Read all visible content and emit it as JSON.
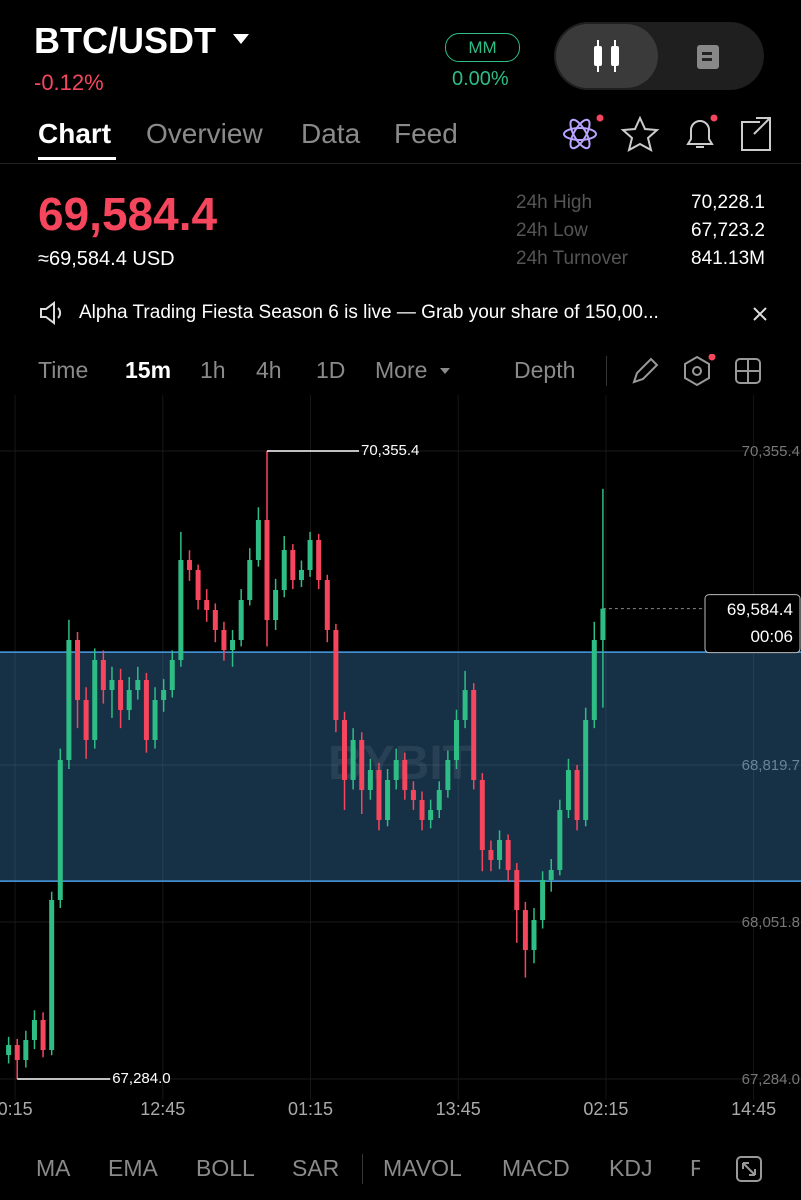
{
  "header": {
    "pair": "BTC/USDT",
    "change": "-0.12%",
    "mm": "MM",
    "mm_value": "0.00%"
  },
  "tabs": [
    "Chart",
    "Overview",
    "Data",
    "Feed"
  ],
  "price": "69,584.4",
  "price_usd": "≈69,584.4 USD",
  "stats": [
    {
      "label": "24h High",
      "value": "70,228.1"
    },
    {
      "label": "24h Low",
      "value": "67,723.2"
    },
    {
      "label": "24h Turnover",
      "value": "841.13M"
    }
  ],
  "announcement": "Alpha Trading Fiesta Season 6 is live — Grab your share of 150,00...",
  "intervals": [
    "Time",
    "15m",
    "1h",
    "4h",
    "1D",
    "More"
  ],
  "depth": "Depth",
  "indicators": [
    "MA",
    "EMA",
    "BOLL",
    "SAR",
    "MAVOL",
    "MACD",
    "KDJ",
    "F"
  ],
  "chart_data": {
    "type": "candlestick",
    "watermark": "BYBIT",
    "up_color": "#2ebd85",
    "down_color": "#f6465d",
    "zone_color": "#4a9ee8",
    "ylim": [
      67205.7,
      70531.5
    ],
    "xlim": [
      0,
      93
    ],
    "yticks": [
      {
        "value": 70355.4,
        "label": "70,355.4"
      },
      {
        "value": 68819.7,
        "label": "68,819.7"
      },
      {
        "value": 68051.8,
        "label": "68,051.8"
      },
      {
        "value": 67284.0,
        "label": "67,284.0"
      }
    ],
    "xticks": [
      {
        "value": 1.75,
        "label": "0:15"
      },
      {
        "value": 18.9,
        "label": "12:45"
      },
      {
        "value": 36.05,
        "label": "01:15"
      },
      {
        "value": 53.2,
        "label": "13:45"
      },
      {
        "value": 70.35,
        "label": "02:15"
      },
      {
        "value": 87.5,
        "label": "14:45"
      }
    ],
    "zone": [
      68252,
      69372
    ],
    "max_label": "70,355.4",
    "min_label": "67,284.0",
    "last_price": 69584.4,
    "last_price_label": "69,584.4",
    "countdown": "00:06",
    "candles": [
      [
        67401.2,
        67490,
        67360,
        67450.1
      ],
      [
        67450.1,
        67480,
        67284.0,
        67376.8
      ],
      [
        67376.8,
        67520,
        67340,
        67474.6
      ],
      [
        67474.6,
        67620,
        67430,
        67572.4
      ],
      [
        67572.4,
        67610,
        67390,
        67425.7
      ],
      [
        67425.7,
        68200,
        67400,
        68159.3
      ],
      [
        68159.3,
        68900,
        68120,
        68844.1
      ],
      [
        68844.1,
        69530,
        68800,
        69431.0
      ],
      [
        69431.0,
        69470,
        69000,
        69137.5
      ],
      [
        69137.5,
        69200,
        68850,
        68941.9
      ],
      [
        68941.9,
        69390,
        68900,
        69333.2
      ],
      [
        69333.2,
        69380,
        69120,
        69186.4
      ],
      [
        69186.4,
        69300,
        69050,
        69235.4
      ],
      [
        69235.4,
        69290,
        69000,
        69088.6
      ],
      [
        69088.6,
        69250,
        69040,
        69186.4
      ],
      [
        69186.4,
        69300,
        69140,
        69235.4
      ],
      [
        69235.4,
        69270,
        68880,
        68941.9
      ],
      [
        68941.9,
        69200,
        68900,
        69137.5
      ],
      [
        69137.5,
        69240,
        69080,
        69186.4
      ],
      [
        69186.4,
        69380,
        69150,
        69333.2
      ],
      [
        69333.2,
        69960,
        69300,
        69822.3
      ],
      [
        69822.3,
        69870,
        69720,
        69773.4
      ],
      [
        69773.4,
        69800,
        69580,
        69626.6
      ],
      [
        69626.6,
        69680,
        69520,
        69577.7
      ],
      [
        69577.7,
        69610,
        69420,
        69479.9
      ],
      [
        69479.9,
        69520,
        69330,
        69382.1
      ],
      [
        69382.1,
        69480,
        69300,
        69431.0
      ],
      [
        69431.0,
        69680,
        69400,
        69626.6
      ],
      [
        69626.6,
        69880,
        69600,
        69822.3
      ],
      [
        69822.3,
        70080,
        69790,
        70017.9
      ],
      [
        70017.9,
        70355.4,
        69400,
        69528.8
      ],
      [
        69528.8,
        69730,
        69480,
        69675.6
      ],
      [
        69675.6,
        69940,
        69640,
        69871.2
      ],
      [
        69871.2,
        69900,
        69680,
        69724.4
      ],
      [
        69724.4,
        69820,
        69690,
        69773.4
      ],
      [
        69773.4,
        69960,
        69740,
        69920.1
      ],
      [
        69920.1,
        69950,
        69680,
        69724.4
      ],
      [
        69724.4,
        69750,
        69420,
        69479.9
      ],
      [
        69479.9,
        69510,
        68980,
        69039.7
      ],
      [
        69039.7,
        69080,
        68600,
        68746.3
      ],
      [
        68746.3,
        69000,
        68700,
        68941.9
      ],
      [
        68941.9,
        68980,
        68580,
        68697.4
      ],
      [
        68697.4,
        68850,
        68650,
        68795.2
      ],
      [
        68795.2,
        68830,
        68500,
        68550.6
      ],
      [
        68550.6,
        68800,
        68520,
        68746.3
      ],
      [
        68746.3,
        68900,
        68700,
        68844.1
      ],
      [
        68844.1,
        68880,
        68650,
        68697.4
      ],
      [
        68697.4,
        68740,
        68600,
        68648.4
      ],
      [
        68648.4,
        68690,
        68500,
        68550.6
      ],
      [
        68550.6,
        68650,
        68510,
        68599.5
      ],
      [
        68599.5,
        68740,
        68560,
        68697.4
      ],
      [
        68697.4,
        68890,
        68660,
        68844.1
      ],
      [
        68844.1,
        69090,
        68800,
        69039.7
      ],
      [
        69039.7,
        69280,
        69000,
        69186.4
      ],
      [
        69186.4,
        69220,
        68700,
        68746.3
      ],
      [
        68746.3,
        68780,
        68300,
        68403.9
      ],
      [
        68403.9,
        68450,
        68300,
        68355.0
      ],
      [
        68355.0,
        68500,
        68310,
        68452.8
      ],
      [
        68452.8,
        68480,
        68250,
        68306.1
      ],
      [
        68306.1,
        68340,
        67950,
        68110.4
      ],
      [
        68110.4,
        68150,
        67780,
        67914.8
      ],
      [
        67914.8,
        68120,
        67850,
        68061.5
      ],
      [
        68061.5,
        68300,
        68020,
        68257.2
      ],
      [
        68257.2,
        68360,
        68200,
        68306.1
      ],
      [
        68306.1,
        68650,
        68280,
        68599.5
      ],
      [
        68599.5,
        68850,
        68560,
        68795.2
      ],
      [
        68795.2,
        68820,
        68500,
        68550.6
      ],
      [
        68550.6,
        69100,
        68520,
        69039.7
      ],
      [
        69039.7,
        69520,
        69000,
        69431.0
      ],
      [
        69431.0,
        70170,
        69100,
        69584.4
      ]
    ]
  }
}
